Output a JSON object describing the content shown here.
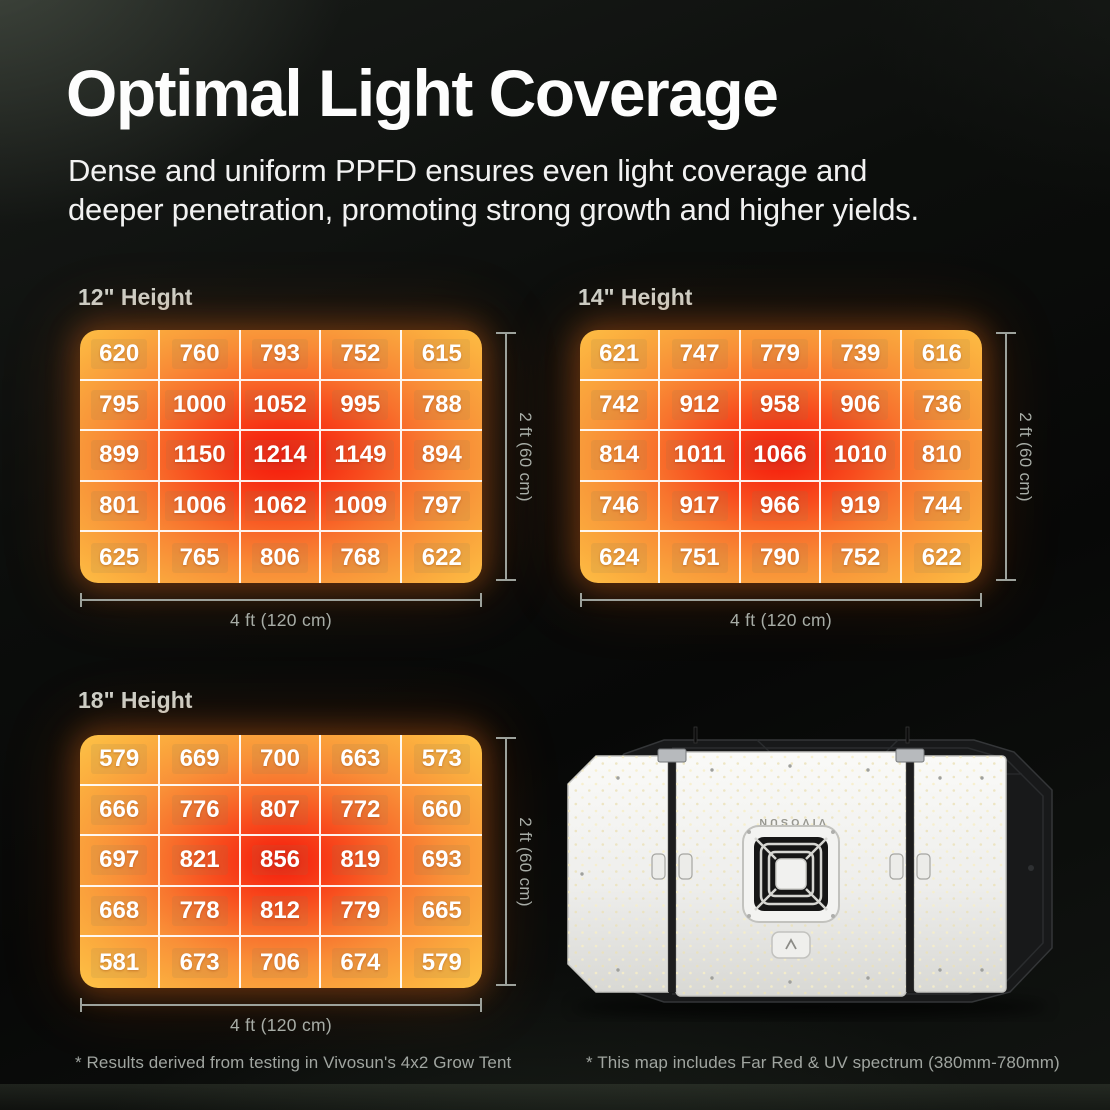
{
  "page": {
    "title": "Optimal Light Coverage",
    "subtitle_lines": [
      "Dense and uniform PPFD ensures even light coverage and",
      "deeper penetration, promoting strong growth and higher yields."
    ],
    "footnote_left": "* Results derived from testing in Vivosun's 4x2 Grow Tent",
    "footnote_right": "* This map includes Far Red & UV spectrum (380mm-780mm)"
  },
  "chart_data": [
    {
      "type": "heatmap",
      "title": "12\" Height",
      "x_axis_label": "4 ft (120 cm)",
      "y_axis_label": "2 ft (60 cm)",
      "rows": 5,
      "cols": 5,
      "values": [
        [
          620,
          760,
          793,
          752,
          615
        ],
        [
          795,
          1000,
          1052,
          995,
          788
        ],
        [
          899,
          1150,
          1214,
          1149,
          894
        ],
        [
          801,
          1006,
          1062,
          1009,
          797
        ],
        [
          625,
          765,
          806,
          768,
          622
        ]
      ],
      "colors": {
        "low": "#fdbd44",
        "mid": "#f98b36",
        "high": "#f5190c"
      }
    },
    {
      "type": "heatmap",
      "title": "14\" Height",
      "x_axis_label": "4 ft (120 cm)",
      "y_axis_label": "2 ft (60 cm)",
      "rows": 5,
      "cols": 5,
      "values": [
        [
          621,
          747,
          779,
          739,
          616
        ],
        [
          742,
          912,
          958,
          906,
          736
        ],
        [
          814,
          1011,
          1066,
          1010,
          810
        ],
        [
          746,
          917,
          966,
          919,
          744
        ],
        [
          624,
          751,
          790,
          752,
          622
        ]
      ],
      "colors": {
        "low": "#fdbd44",
        "mid": "#f98d36",
        "high": "#f5190c"
      }
    },
    {
      "type": "heatmap",
      "title": "18\" Height",
      "x_axis_label": "4 ft (120 cm)",
      "y_axis_label": "2 ft (60 cm)",
      "rows": 5,
      "cols": 5,
      "values": [
        [
          579,
          669,
          700,
          663,
          573
        ],
        [
          666,
          776,
          807,
          772,
          660
        ],
        [
          697,
          821,
          856,
          819,
          693
        ],
        [
          668,
          778,
          812,
          779,
          665
        ],
        [
          581,
          673,
          706,
          674,
          579
        ]
      ],
      "colors": {
        "low": "#fdc247",
        "mid": "#f99038",
        "high": "#f5190c"
      }
    }
  ],
  "product": {
    "brand": "VIVOSUN"
  }
}
